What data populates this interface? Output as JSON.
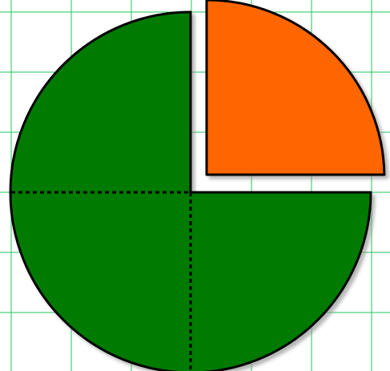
{
  "diagram": {
    "kind": "fraction-circle",
    "parts_total": 4,
    "parts_removed": 1,
    "removed_quadrant": "top-right",
    "fraction_shown": "1/4",
    "remaining_fraction": "3/4"
  },
  "colors": {
    "background": "#ffffff",
    "grid": "#22c45a",
    "remaining_fill": "#007a00",
    "removed_fill": "#ff6600",
    "outline": "#000000",
    "shadow": "#9a9a9a"
  },
  "annotations": {
    "internal_divider_style": "dashed"
  }
}
